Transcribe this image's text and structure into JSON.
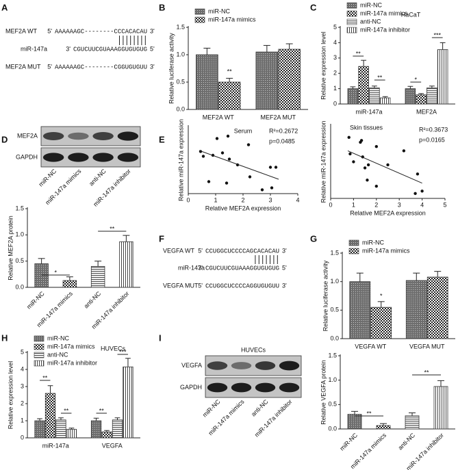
{
  "chart_data": [
    {
      "panel": "B",
      "type": "bar",
      "ylabel": "Relative luciferase activity",
      "categories": [
        "MEF2A WT",
        "MEF2A MUT"
      ],
      "series": [
        {
          "name": "miR-NC",
          "pattern": "dots",
          "values": [
            1.0,
            1.05
          ],
          "errors": [
            0.12,
            0.12
          ]
        },
        {
          "name": "miR-147a mimics",
          "pattern": "checker",
          "values": [
            0.5,
            1.1
          ],
          "errors": [
            0.07,
            0.1
          ]
        }
      ],
      "ylim": [
        0,
        1.5
      ],
      "yticks": [
        {
          "value": 0,
          "label": "0.0"
        },
        0.5,
        {
          "value": 1,
          "label": "1.0"
        },
        1.5
      ],
      "annotations": [
        "**"
      ]
    },
    {
      "panel": "C",
      "type": "bar",
      "subtitle": "HaCaT",
      "ylabel": "Relative expression level",
      "categories": [
        "miR-147a",
        "MEF2A"
      ],
      "series": [
        {
          "name": "miR-NC",
          "pattern": "dots",
          "values": [
            1.0,
            1.0
          ],
          "errors": [
            0.12,
            0.15
          ]
        },
        {
          "name": "miR-147a mimics",
          "pattern": "checker",
          "values": [
            2.45,
            0.6
          ],
          "errors": [
            0.4,
            0.08
          ]
        },
        {
          "name": "anti-NC",
          "pattern": "hlines",
          "values": [
            1.05,
            1.05
          ],
          "errors": [
            0.12,
            0.12
          ]
        },
        {
          "name": "miR-147a inhibitor",
          "pattern": "vlines",
          "values": [
            0.4,
            3.55
          ],
          "errors": [
            0.08,
            0.45
          ]
        }
      ],
      "ylim": [
        0,
        5
      ],
      "yticks": [
        0,
        1,
        2,
        3,
        4,
        5
      ],
      "annotations": [
        "**",
        "**",
        "*",
        "***"
      ]
    },
    {
      "type": "bar",
      "ylabel": "Relative MEF2A protein",
      "xtick_rotation": -45,
      "categories": [
        "miR-NC",
        "miR-147a mimics",
        "anti-NC",
        "miR-147a inhibitor"
      ],
      "series": [
        {
          "patterns": [
            "dots",
            "checker",
            "hlines",
            "vlines"
          ],
          "values": [
            0.45,
            0.13,
            0.4,
            0.87
          ],
          "errors": [
            0.1,
            0.07,
            0.1,
            0.12
          ]
        }
      ],
      "ylim": [
        0,
        1.5
      ],
      "yticks": [
        {
          "value": 0,
          "label": "0.0"
        },
        0.5,
        {
          "value": 1,
          "label": "1.0"
        },
        1.5
      ],
      "annotations": [
        "*",
        "**"
      ]
    },
    {
      "panel": "E",
      "type": "scatter",
      "title": "Serum",
      "xlabel": "Relative MEF2A expression",
      "ylabel": "Relative miR-147a expression",
      "x": [
        0.45,
        0.55,
        0.75,
        0.9,
        1.05,
        1.25,
        1.4,
        1.45,
        1.5,
        1.8,
        2.2,
        2.25,
        2.7,
        3.0,
        3.05,
        3.2
      ],
      "y": [
        0.88,
        0.78,
        0.25,
        0.8,
        1.15,
        0.85,
        0.22,
        1.2,
        0.72,
        0.6,
        1.02,
        0.35,
        0.08,
        0.55,
        0.12,
        0.55
      ],
      "trendline": {
        "x": [
          0.4,
          3.3
        ],
        "y": [
          0.9,
          0.3
        ]
      },
      "xlim": [
        0,
        4
      ],
      "xticks": [
        0,
        1,
        2,
        3,
        4
      ],
      "ylim": [
        0,
        1.4
      ],
      "annotations": [
        "R²=0.2672",
        "p=0.0485"
      ]
    },
    {
      "type": "scatter",
      "title": "Skin tissues",
      "xlabel": "Relative MEF2A expression",
      "ylabel": "Relative miR-147a expression",
      "x": [
        0.8,
        0.85,
        1.0,
        1.3,
        1.35,
        1.4,
        1.5,
        1.6,
        1.65,
        2.0,
        2.0,
        2.5,
        3.2,
        3.7,
        3.8,
        4.0
      ],
      "y": [
        1.0,
        0.73,
        0.6,
        0.92,
        0.95,
        0.68,
        0.5,
        0.3,
        0.55,
        0.85,
        0.2,
        0.55,
        0.78,
        0.08,
        0.4,
        0.12
      ],
      "trendline": {
        "x": [
          0.75,
          4.0
        ],
        "y": [
          0.78,
          0.25
        ]
      },
      "xlim": [
        0,
        5
      ],
      "xticks": [
        0,
        1,
        2,
        3,
        4,
        5
      ],
      "ylim": [
        0,
        1.2
      ],
      "annotations": [
        "R²=0.3673",
        "p=0.0165"
      ]
    },
    {
      "panel": "G",
      "type": "bar",
      "ylabel": "Relative luciferase activity",
      "categories": [
        "VEGFA WT",
        "VEGFA MUT"
      ],
      "series": [
        {
          "name": "miR-NC",
          "pattern": "dots",
          "values": [
            1.0,
            1.02
          ],
          "errors": [
            0.15,
            0.13
          ]
        },
        {
          "name": "miR-147a mimics",
          "pattern": "checker",
          "values": [
            0.55,
            1.08
          ],
          "errors": [
            0.1,
            0.1
          ]
        }
      ],
      "ylim": [
        0,
        1.5
      ],
      "yticks": [
        {
          "value": 0,
          "label": "0.0"
        },
        0.5,
        {
          "value": 1,
          "label": "1.0"
        },
        1.5
      ],
      "annotations": [
        "*"
      ]
    },
    {
      "panel": "H",
      "type": "bar",
      "subtitle": "HUVECs",
      "ylabel": "Relative expression level",
      "categories": [
        "miR-147a",
        "VEGFA"
      ],
      "series": [
        {
          "name": "miR-NC",
          "pattern": "dots",
          "values": [
            1.0,
            1.0
          ],
          "errors": [
            0.12,
            0.15
          ]
        },
        {
          "name": "miR-147a mimics",
          "pattern": "checker",
          "values": [
            2.6,
            0.35
          ],
          "errors": [
            0.45,
            0.08
          ]
        },
        {
          "name": "anti-NC",
          "pattern": "hlines",
          "values": [
            1.05,
            1.05
          ],
          "errors": [
            0.12,
            0.12
          ]
        },
        {
          "name": "miR-147a inhibitor",
          "pattern": "vlines",
          "values": [
            0.5,
            4.15
          ],
          "errors": [
            0.07,
            0.5
          ]
        }
      ],
      "ylim": [
        0,
        5
      ],
      "yticks": [
        0,
        1,
        2,
        3,
        4,
        5
      ],
      "annotations": [
        "**",
        "**",
        "**",
        "***"
      ]
    },
    {
      "type": "bar",
      "ylabel": "Relative VEGFA protein",
      "xtick_rotation": -45,
      "categories": [
        "miR-NC",
        "miR-147a mimics",
        "anti-NC",
        "miR-147a inhibitor"
      ],
      "series": [
        {
          "patterns": [
            "dots",
            "checker",
            "hlines",
            "vlines"
          ],
          "values": [
            0.3,
            0.07,
            0.27,
            0.87
          ],
          "errors": [
            0.06,
            0.04,
            0.06,
            0.12
          ]
        }
      ],
      "ylim": [
        0,
        1.5
      ],
      "yticks": [
        {
          "value": 0,
          "label": "0.0"
        },
        0.5,
        {
          "value": 1,
          "label": "1.0"
        },
        1.5
      ],
      "annotations": [
        "**",
        "**"
      ]
    }
  ],
  "sequences": [
    {
      "panel": "A",
      "rows": [
        {
          "name": "MEF2A WT",
          "left": "5'",
          "seq": "AAAAAAGC--------CCCACACAU",
          "right": "3'"
        },
        {
          "name": "miR-147a",
          "left": "3'",
          "seq": "CGUCUUCGUAAAGGUGUGUG",
          "right": "5'"
        },
        {
          "name": "MEF2A MUT",
          "left": "5'",
          "seq": "AAAAAAGC--------CGGUGUGUU",
          "right": "3'"
        }
      ]
    },
    {
      "panel": "F",
      "rows": [
        {
          "name": "VEGFA WT",
          "left": "5'",
          "seq": "CCUGGCUCCCCAGCACACAU",
          "right": "3'"
        },
        {
          "name": "miR-147a",
          "left": "3'",
          "seq": "CGUCUUCGUAAAGGUGUGUG",
          "right": "5'"
        },
        {
          "name": "VEGFA MUT",
          "left": "5'",
          "seq": "CCUGGCUCCCCAGGUGUGUU",
          "right": "3'"
        }
      ]
    }
  ],
  "blots": [
    {
      "panel": "D",
      "rows": [
        "MEF2A",
        "GAPDH"
      ],
      "lanes": [
        "miR-NC",
        "miR-147a mimics",
        "anti-NC",
        "miR-147a inhibitor"
      ]
    },
    {
      "panel": "I",
      "title": "HUVECs",
      "rows": [
        "VEGFA",
        "GAPDH"
      ],
      "lanes": [
        "miR-NC",
        "miR-147a mimics",
        "anti-NC",
        "miR-147a inhibitor"
      ]
    }
  ]
}
